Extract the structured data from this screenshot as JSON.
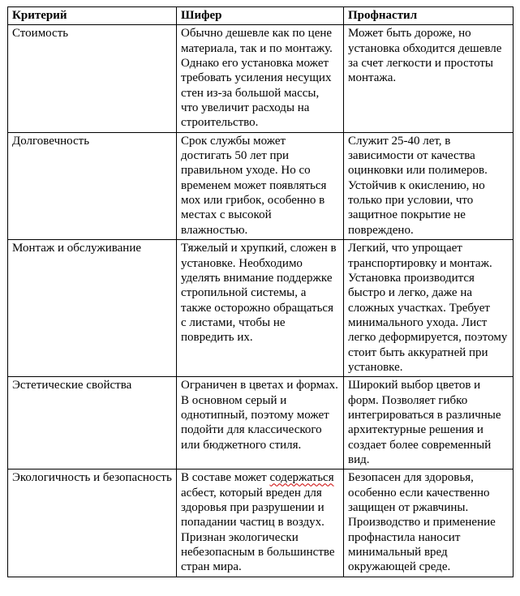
{
  "colors": {
    "background": "#ffffff",
    "text": "#000000",
    "table_border": "#000000",
    "spellcheck_underline": "#cc0000"
  },
  "table": {
    "headers": [
      {
        "label": "Критерий"
      },
      {
        "label": "Шифер"
      },
      {
        "label": "Профнастил"
      }
    ],
    "rows": [
      {
        "criterion": "Стоимость",
        "shifer": "Обычно дешевле как по цене материала, так и по монтажу. Однако его установка может требовать усиления несущих стен из-за большой массы, что увеличит расходы на строительство.",
        "profnastil": "Может быть дороже, но установка обходится дешевле за счет легкости и простоты монтажа."
      },
      {
        "criterion": "Долговечность",
        "shifer": "Срок службы может достигать 50 лет при правильном уходе. Но со временем может появляться мох или грибок, особенно в местах с высокой влажностью.",
        "profnastil": "Служит 25-40 лет, в зависимости от качества оцинковки или полимеров. Устойчив к окислению, но только при условии, что защитное покрытие не повреждено."
      },
      {
        "criterion": "Монтаж и обслуживание",
        "shifer": "Тяжелый и хрупкий, сложен в установке. Необходимо уделять внимание поддержке стропильной системы, а также осторожно обращаться с листами, чтобы не повредить их.",
        "profnastil": "Легкий, что упрощает транспортировку и монтаж. Установка производится быстро и легко, даже на сложных участках. Требует минимального ухода. Лист легко деформируется, поэтому стоит быть аккуратней при установке."
      },
      {
        "criterion": "Эстетические свойства",
        "shifer": "Ограничен в цветах и формах. В основном серый и однотипный, поэтому может подойти для классического или бюджетного стиля.",
        "profnastil": "Широкий выбор цветов и форм. Позволяет гибко интегрироваться в различные архитектурные решения и создает более современный вид."
      },
      {
        "criterion": "Экологичность и безопасность",
        "shifer_parts": {
          "pre": "В составе может ",
          "misspelled": "содержаться",
          "post": " асбест, который вреден для здоровья при разрушении и попадании частиц в воздух. Признан экологически небезопасным в большинстве стран мира."
        },
        "profnastil": "Безопасен для здоровья, особенно если качественно защищен от ржавчины. Производство и применение профнастила наносит минимальный вред окружающей среде."
      }
    ]
  }
}
